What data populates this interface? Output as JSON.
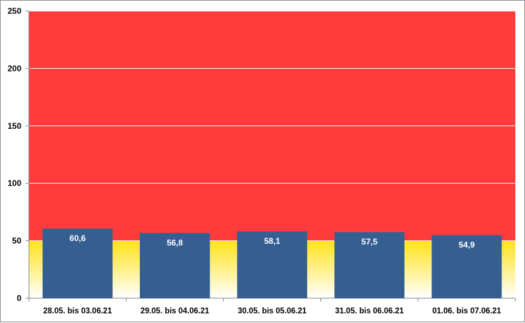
{
  "colors": {
    "high_zone": "#ff3b3b",
    "low_zone_top": "#ffe21a",
    "low_zone_bottom": "#ffffff",
    "bar": "#365f91",
    "gridline": "#ffffff"
  },
  "chart_data": {
    "type": "bar",
    "title": "",
    "xlabel": "",
    "ylabel": "",
    "ylim": [
      0,
      250
    ],
    "y_ticks": [
      "0",
      "50",
      "100",
      "150",
      "200",
      "250"
    ],
    "y_tick_values": [
      0,
      50,
      100,
      150,
      200,
      250
    ],
    "grid": true,
    "zones": [
      {
        "from": 0,
        "to": 50,
        "fill": "yellow-gradient"
      },
      {
        "from": 50,
        "to": 250,
        "fill": "red"
      }
    ],
    "categories": [
      "28.05. bis 03.06.21",
      "29.05. bis 04.06.21",
      "30.05. bis 05.06.21",
      "31.05. bis 06.06.21",
      "01.06. bis 07.06.21"
    ],
    "values": [
      60.6,
      56.8,
      58.1,
      57.5,
      54.9
    ],
    "value_labels": [
      "60,6",
      "56,8",
      "58,1",
      "57,5",
      "54,9"
    ]
  }
}
